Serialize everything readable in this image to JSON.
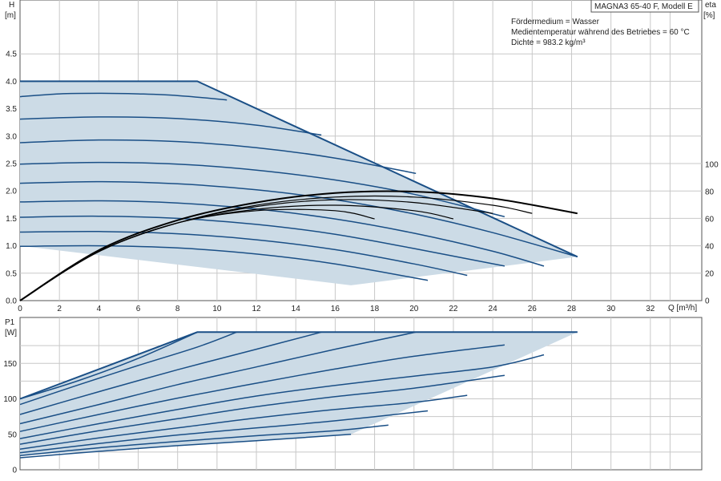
{
  "header": {
    "model_label": "MAGNA3 65-40 F, Modell E",
    "medium_line": "Fördermedium = Wasser",
    "temp_line": "Medientemperatur während des Betriebes = 60 °C",
    "density_line": "Dichte = 983.2 kg/m³"
  },
  "colors": {
    "curve": "#1a4f86",
    "area": "#ccdbe6",
    "grid": "#c8c8c8",
    "eta": "#000000"
  },
  "chart_data": [
    {
      "type": "line",
      "name": "head",
      "ylabel": "H",
      "yunit": "[m]",
      "y2label": "eta",
      "y2unit": "[%]",
      "xlabel": "Q [m³/h]",
      "xlim": [
        0,
        34
      ],
      "ylim": [
        0,
        5
      ],
      "y2lim": [
        0,
        100
      ],
      "xticks": [
        0,
        2,
        4,
        6,
        8,
        10,
        12,
        14,
        16,
        18,
        20,
        22,
        24,
        26,
        28,
        30,
        32
      ],
      "yticks": [
        0.0,
        0.5,
        1.0,
        1.5,
        2.0,
        2.5,
        3.0,
        3.5,
        4.0,
        4.5
      ],
      "y2ticks": [
        0,
        20,
        40,
        60,
        80,
        100
      ],
      "grid": true,
      "envelope": [
        [
          0,
          4.0
        ],
        [
          9.0,
          4.0
        ],
        [
          28.3,
          0.8
        ],
        [
          16.8,
          0.28
        ],
        [
          0,
          1.0
        ]
      ],
      "curves": [
        {
          "x": [
            0,
            2,
            4,
            6,
            8,
            10.5
          ],
          "y": [
            3.72,
            3.77,
            3.78,
            3.77,
            3.74,
            3.66
          ]
        },
        {
          "x": [
            0,
            4,
            8,
            12,
            15.3
          ],
          "y": [
            3.31,
            3.35,
            3.32,
            3.2,
            3.02
          ]
        },
        {
          "x": [
            0,
            4,
            8,
            12,
            16,
            20.1
          ],
          "y": [
            2.88,
            2.93,
            2.9,
            2.79,
            2.6,
            2.32
          ]
        },
        {
          "x": [
            0,
            4,
            8,
            12,
            16,
            20,
            24.6
          ],
          "y": [
            2.49,
            2.52,
            2.49,
            2.38,
            2.2,
            1.94,
            1.53
          ]
        },
        {
          "x": [
            0,
            4,
            8,
            12,
            16,
            20,
            24,
            28.3
          ],
          "y": [
            2.14,
            2.17,
            2.13,
            2.02,
            1.84,
            1.58,
            1.24,
            0.8
          ]
        },
        {
          "x": [
            0,
            4,
            8,
            12,
            16,
            20,
            24,
            26.6
          ],
          "y": [
            1.8,
            1.82,
            1.78,
            1.67,
            1.49,
            1.23,
            0.9,
            0.63
          ]
        },
        {
          "x": [
            0,
            4,
            8,
            12,
            16,
            20,
            24.6
          ],
          "y": [
            1.52,
            1.54,
            1.5,
            1.39,
            1.21,
            0.95,
            0.63
          ]
        },
        {
          "x": [
            0,
            4,
            8,
            12,
            16,
            20,
            22.7
          ],
          "y": [
            1.25,
            1.26,
            1.22,
            1.11,
            0.93,
            0.67,
            0.46
          ]
        },
        {
          "x": [
            0,
            4,
            8,
            12,
            16,
            20.7
          ],
          "y": [
            0.99,
            1.0,
            0.96,
            0.85,
            0.67,
            0.37
          ]
        }
      ],
      "eta_curves": [
        {
          "x": [
            0,
            4,
            8,
            12,
            16,
            18
          ],
          "y": [
            0,
            36,
            57,
            66,
            66,
            60
          ]
        },
        {
          "x": [
            0,
            4,
            8,
            12,
            16,
            20,
            22
          ],
          "y": [
            0,
            36,
            57,
            67,
            70,
            66,
            60
          ]
        },
        {
          "x": [
            0,
            4,
            8,
            12,
            16,
            20,
            24
          ],
          "y": [
            0,
            36,
            57,
            69,
            74,
            72,
            64
          ]
        },
        {
          "x": [
            0,
            4,
            8,
            12,
            16,
            20,
            24,
            26
          ],
          "y": [
            0,
            36,
            57,
            70,
            76,
            76,
            70,
            64
          ]
        },
        {
          "x": [
            0,
            4,
            8,
            12,
            16,
            20,
            24,
            28.3
          ],
          "y": [
            0,
            37,
            59,
            72,
            79,
            80,
            75,
            64
          ]
        }
      ]
    },
    {
      "type": "line",
      "name": "power",
      "ylabel": "P1",
      "yunit": "[W]",
      "xlim": [
        0,
        34
      ],
      "ylim": [
        0,
        200
      ],
      "yticks": [
        0,
        50,
        100,
        150
      ],
      "grid": true,
      "envelope": [
        [
          0,
          100
        ],
        [
          9.0,
          194
        ],
        [
          28.3,
          194
        ],
        [
          16.8,
          50
        ],
        [
          0,
          20
        ]
      ],
      "curves": [
        {
          "x": [
            0,
            3,
            6,
            9.0
          ],
          "y": [
            100,
            126,
            157,
            194
          ]
        },
        {
          "x": [
            0,
            3,
            6,
            9,
            11.0
          ],
          "y": [
            92,
            120,
            147,
            173,
            194
          ]
        },
        {
          "x": [
            0,
            4,
            8,
            12,
            15.3
          ],
          "y": [
            78,
            110,
            141,
            170,
            194
          ]
        },
        {
          "x": [
            0,
            4,
            8,
            12,
            16,
            20.1
          ],
          "y": [
            65,
            92,
            120,
            145,
            170,
            194
          ]
        },
        {
          "x": [
            0,
            4,
            8,
            12,
            16,
            20,
            24.6
          ],
          "y": [
            54,
            78,
            101,
            122,
            142,
            160,
            176
          ]
        },
        {
          "x": [
            0,
            4,
            8,
            12,
            16,
            20,
            24,
            26.6
          ],
          "y": [
            44,
            65,
            85,
            104,
            119,
            132,
            145,
            162
          ]
        },
        {
          "x": [
            0,
            4,
            8,
            12,
            16,
            20,
            24.6
          ],
          "y": [
            36,
            55,
            72,
            89,
            103,
            115,
            133
          ]
        },
        {
          "x": [
            0,
            4,
            8,
            12,
            16,
            20,
            22.7
          ],
          "y": [
            29,
            45,
            59,
            73,
            85,
            95,
            105
          ]
        },
        {
          "x": [
            0,
            4,
            8,
            12,
            16,
            20.7
          ],
          "y": [
            24,
            37,
            49,
            59,
            69,
            83
          ]
        },
        {
          "x": [
            0,
            4,
            8,
            12,
            16,
            18.7
          ],
          "y": [
            20,
            31,
            40,
            48,
            55,
            63
          ]
        },
        {
          "x": [
            0,
            4,
            8,
            12,
            16.8
          ],
          "y": [
            17,
            26,
            34,
            41,
            50
          ]
        }
      ]
    }
  ]
}
